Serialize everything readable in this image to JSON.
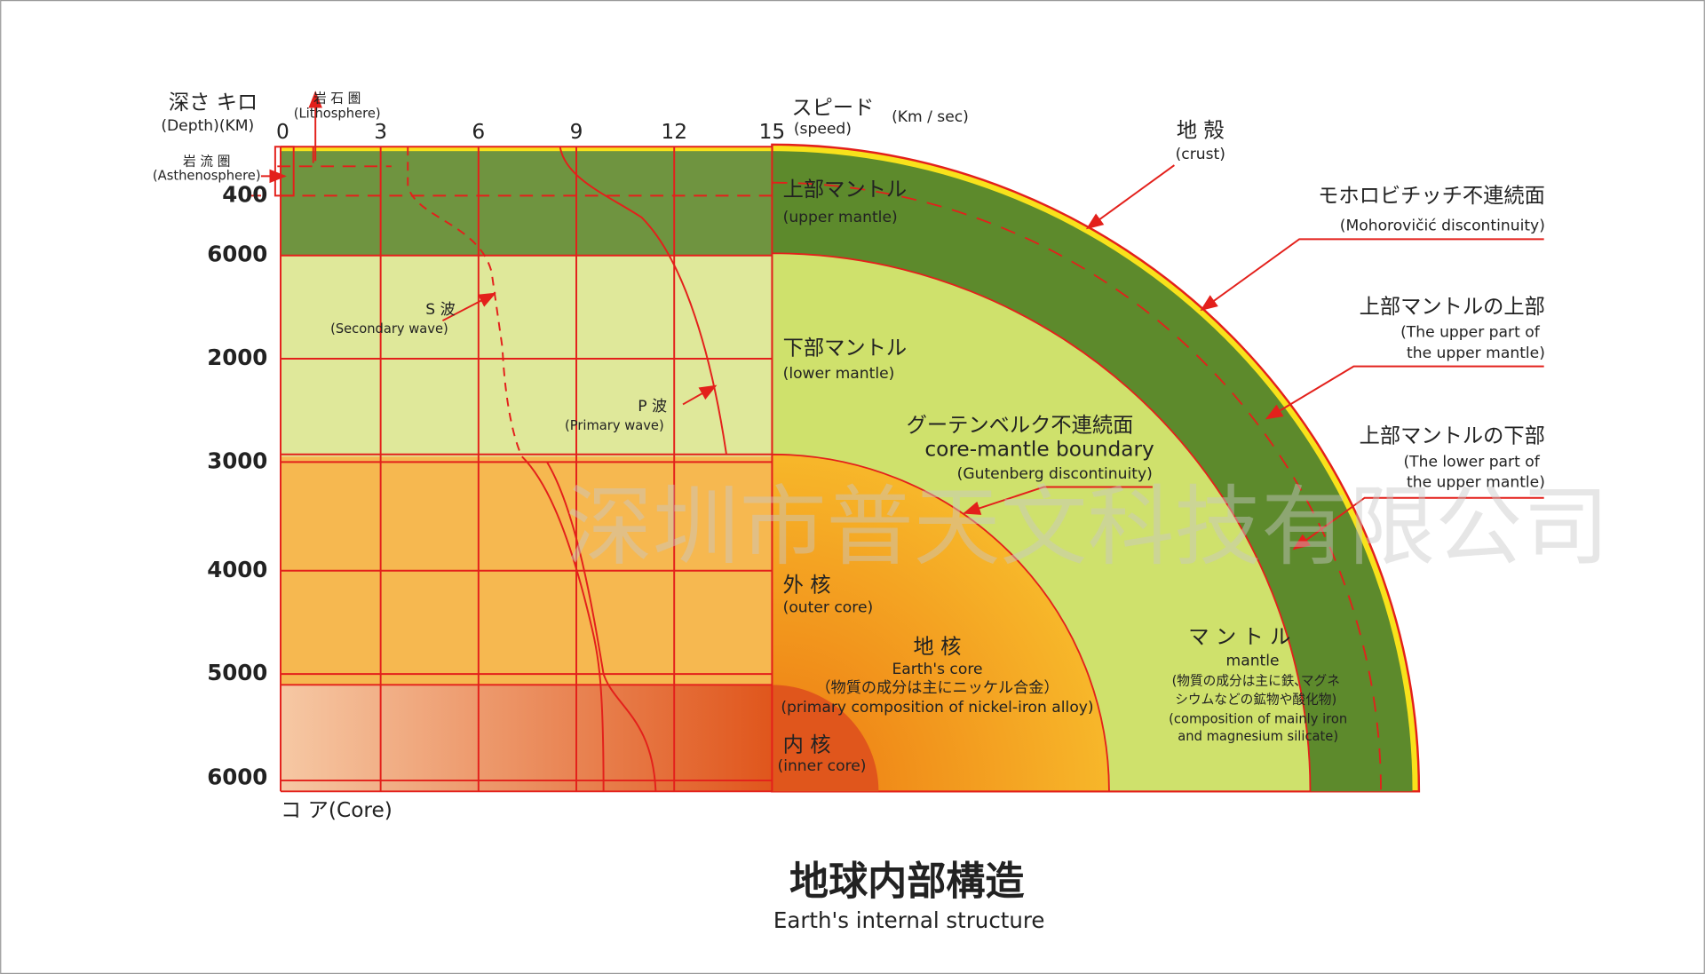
{
  "header": {
    "depth_label": "深さ キロ",
    "depth_label_en": "(Depth)(KM)",
    "speed_label": "スピード",
    "speed_label_en": "(speed)",
    "speed_unit": "(Km / sec)"
  },
  "speed_ticks": [
    "0",
    "3",
    "6",
    "9",
    "12",
    "15"
  ],
  "depth_ticks": [
    "400",
    "6000",
    "2000",
    "3000",
    "4000",
    "5000",
    "6000"
  ],
  "lithosphere": {
    "label": "岩 石 圏",
    "label_en": "(Lithosphere)"
  },
  "asthenosphere": {
    "label": "岩 流 圏",
    "label_en": "(Asthenosphere)"
  },
  "s_wave": {
    "label": "S 波",
    "label_en": "(Secondary wave)"
  },
  "p_wave": {
    "label": "P 波",
    "label_en": "(Primary wave)"
  },
  "upper_mantle": {
    "label": "上部マントル",
    "label_en": "(upper mantle)"
  },
  "lower_mantle": {
    "label": "下部マントル",
    "label_en": "(lower mantle)"
  },
  "gutenberg": {
    "label": "グーテンベルク不連続面",
    "label_en": "core-mantle boundary",
    "note": "(Gutenberg discontinuity)"
  },
  "outer_core": {
    "label": "外 核",
    "label_en": "(outer core)"
  },
  "earth_core": {
    "label": "地 核",
    "label_en": "Earth's core",
    "note": "（物質の成分は主にニッケル合金）",
    "note_en": "(primary composition of nickel-iron alloy)"
  },
  "inner_core": {
    "label": "内 核",
    "label_en": "(inner core)"
  },
  "mantle": {
    "label": "マ ン ト ル",
    "label_en": "mantle",
    "note": [
      "(物質の成分は主に鉄､マグネ",
      "シウムなどの鉱物や酸化物)"
    ],
    "note_en": [
      "(composition of mainly iron",
      "and magnesium silicate)"
    ]
  },
  "crust": {
    "label": "地 殻",
    "label_en": "(crust)"
  },
  "moho": {
    "label": "モホロビチッチ不連続面",
    "label_en": "(Mohorovičić discontinuity)"
  },
  "upper_upper": {
    "label": "上部マントルの上部",
    "label_en": [
      "(The upper part of",
      "the upper mantle)"
    ]
  },
  "lower_upper": {
    "label": "上部マントルの下部",
    "label_en": [
      "(The lower part of",
      "the upper mantle)"
    ]
  },
  "core_label": "コ ア(Core)",
  "title": "地球内部構造",
  "subtitle": "Earth's internal structure",
  "watermark": "深圳市普天文科技有限公司"
}
